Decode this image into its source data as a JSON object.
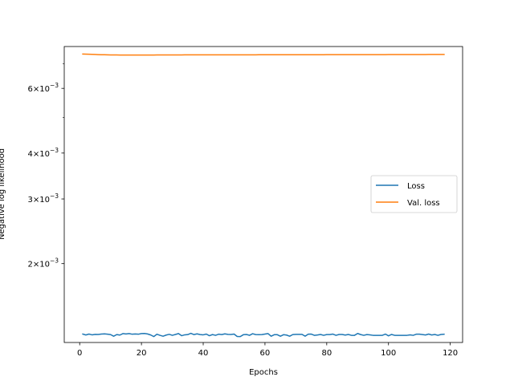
{
  "chart_data": {
    "type": "line",
    "title": "",
    "xlabel": "Epochs",
    "ylabel": "Negative log likelihood",
    "xlim": [
      -5,
      124
    ],
    "ylim": [
      0.00122,
      0.0078
    ],
    "yscale": "log",
    "grid": false,
    "legend_position": "center-right",
    "x_ticks": [
      {
        "value": 0,
        "label": "0"
      },
      {
        "value": 20,
        "label": "20"
      },
      {
        "value": 40,
        "label": "40"
      },
      {
        "value": 60,
        "label": "60"
      },
      {
        "value": 80,
        "label": "80"
      },
      {
        "value": 100,
        "label": "100"
      },
      {
        "value": 120,
        "label": "120"
      }
    ],
    "y_major_ticks": [
      {
        "value": 0.002,
        "mantissa": "2",
        "times": "×",
        "base": "10",
        "exponent": "−3"
      },
      {
        "value": 0.003,
        "mantissa": "3",
        "times": "×",
        "base": "10",
        "exponent": "−3"
      },
      {
        "value": 0.004,
        "mantissa": "4",
        "times": "×",
        "base": "10",
        "exponent": "−3"
      },
      {
        "value": 0.006,
        "mantissa": "6",
        "times": "×",
        "base": "10",
        "exponent": "−3"
      }
    ],
    "y_minor_ticks": [
      0.005,
      0.007
    ],
    "series": [
      {
        "name": "Loss",
        "color": "#1f77b4",
        "x_start": 1,
        "x_step": 1,
        "values": [
          0.001286,
          0.001279,
          0.001286,
          0.00128,
          0.001284,
          0.001283,
          0.001286,
          0.001288,
          0.001285,
          0.001282,
          0.001269,
          0.001282,
          0.001278,
          0.00129,
          0.001287,
          0.00129,
          0.001285,
          0.001287,
          0.001285,
          0.00129,
          0.001291,
          0.001287,
          0.001279,
          0.001266,
          0.001285,
          0.001276,
          0.001269,
          0.001278,
          0.001284,
          0.001276,
          0.001283,
          0.00129,
          0.001273,
          0.00128,
          0.001282,
          0.001292,
          0.001282,
          0.001288,
          0.001282,
          0.00128,
          0.001286,
          0.001273,
          0.001282,
          0.001276,
          0.001285,
          0.001282,
          0.001288,
          0.001284,
          0.001283,
          0.001286,
          0.001267,
          0.001266,
          0.001281,
          0.001283,
          0.001276,
          0.001289,
          0.001282,
          0.001281,
          0.001282,
          0.001286,
          0.00129,
          0.001269,
          0.001281,
          0.001281,
          0.001269,
          0.001281,
          0.001278,
          0.001269,
          0.001282,
          0.001284,
          0.001284,
          0.001284,
          0.001269,
          0.001285,
          0.001286,
          0.001276,
          0.001279,
          0.001283,
          0.001276,
          0.001282,
          0.001282,
          0.001286,
          0.001276,
          0.001283,
          0.001283,
          0.001278,
          0.001283,
          0.001276,
          0.001276,
          0.001291,
          0.001282,
          0.001276,
          0.001282,
          0.00128,
          0.001276,
          0.001276,
          0.001276,
          0.001276,
          0.001286,
          0.001272,
          0.001283,
          0.001276,
          0.001276,
          0.001276,
          0.001276,
          0.001276,
          0.00128,
          0.001276,
          0.001285,
          0.001285,
          0.001282,
          0.001279,
          0.001286,
          0.001279,
          0.001283,
          0.001276,
          0.001283,
          0.001285
        ]
      },
      {
        "name": "Val. loss",
        "color": "#ff7f0e",
        "x_start": 1,
        "x_step": 1,
        "values": [
          0.00744,
          0.007435,
          0.00743,
          0.007425,
          0.00742,
          0.007415,
          0.00741,
          0.007406,
          0.007403,
          0.0074,
          0.007398,
          0.007397,
          0.007396,
          0.007396,
          0.007396,
          0.007396,
          0.007396,
          0.007396,
          0.007396,
          0.007396,
          0.007396,
          0.007396,
          0.007396,
          0.007396,
          0.007397,
          0.007397,
          0.007397,
          0.007398,
          0.007398,
          0.007399,
          0.0074,
          0.0074,
          0.007401,
          0.007402,
          0.007403,
          0.007404,
          0.007404,
          0.007405,
          0.007405,
          0.007405,
          0.007405,
          0.007405,
          0.007405,
          0.007405,
          0.007405,
          0.007405,
          0.007405,
          0.007405,
          0.007405,
          0.007405,
          0.007405,
          0.007405,
          0.007405,
          0.007405,
          0.007405,
          0.007405,
          0.007405,
          0.007406,
          0.007406,
          0.007406,
          0.007406,
          0.007406,
          0.007406,
          0.007407,
          0.007407,
          0.007407,
          0.007407,
          0.007407,
          0.007408,
          0.007408,
          0.007408,
          0.007408,
          0.007409,
          0.007409,
          0.007409,
          0.00741,
          0.00741,
          0.00741,
          0.00741,
          0.007411,
          0.007411,
          0.007411,
          0.007411,
          0.007412,
          0.007412,
          0.007412,
          0.007412,
          0.007413,
          0.007413,
          0.007413,
          0.007413,
          0.007414,
          0.007414,
          0.007414,
          0.007414,
          0.007415,
          0.007415,
          0.007415,
          0.007415,
          0.007416,
          0.007416,
          0.007416,
          0.007417,
          0.007417,
          0.007417,
          0.007417,
          0.007418,
          0.007418,
          0.007418,
          0.007419,
          0.007419,
          0.007419,
          0.00742,
          0.00742,
          0.00742,
          0.007421,
          0.007421,
          0.007421
        ]
      }
    ]
  }
}
